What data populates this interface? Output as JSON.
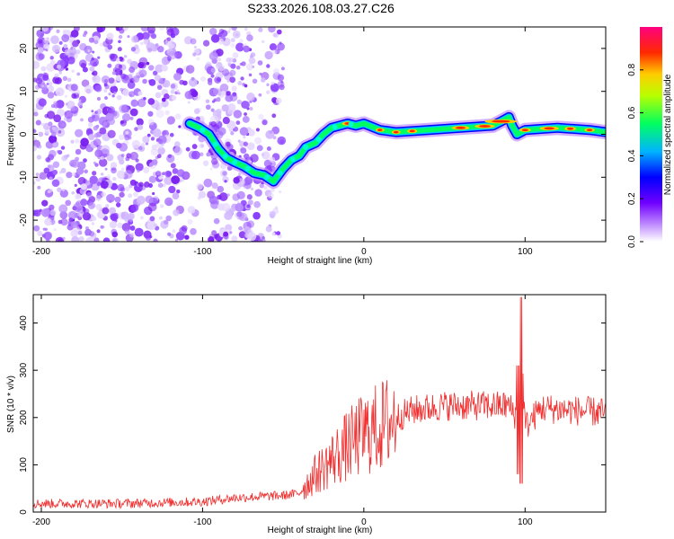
{
  "figure": {
    "title": "S233.2026.108.03.27.C26"
  },
  "chart_data": [
    {
      "type": "heatmap",
      "name": "spectrogram",
      "xlabel": "Height of straight line (km)",
      "ylabel": "Frequency (Hz)",
      "xlim": [
        -205,
        150
      ],
      "ylim": [
        -25,
        25
      ],
      "xticks": [
        -200,
        -100,
        0,
        100
      ],
      "yticks": [
        -20,
        -10,
        0,
        10,
        20
      ],
      "ridge": {
        "x": [
          -108,
          -102,
          -96,
          -90,
          -85,
          -80,
          -74,
          -68,
          -62,
          -56,
          -50,
          -45,
          -40,
          -36,
          -30,
          -25,
          -20,
          -15,
          -10,
          -5,
          0,
          10,
          20,
          40,
          60,
          80,
          85,
          90,
          92,
          95,
          100,
          120,
          140,
          150
        ],
        "y": [
          2.5,
          1.5,
          0,
          -3.5,
          -5.5,
          -6.5,
          -7.5,
          -9,
          -9.5,
          -11,
          -8,
          -6,
          -5,
          -3,
          -2,
          0,
          1.5,
          2,
          2.5,
          2,
          2.5,
          1,
          0.5,
          1,
          1.5,
          2,
          3,
          4,
          2,
          0,
          1,
          1.5,
          1,
          0.5
        ]
      },
      "colorbar": {
        "label": "Normalized spectral amplitude",
        "range": [
          0,
          1
        ],
        "ticks": [
          "0.0",
          "0.2",
          "0.4",
          "0.6",
          "0.8"
        ],
        "colors": [
          "#ffffff",
          "#9b30ff",
          "#0000ff",
          "#00c8ff",
          "#00ff44",
          "#ffff00",
          "#ff8800",
          "#ff0000",
          "#ff00aa"
        ]
      }
    },
    {
      "type": "line",
      "name": "snr",
      "xlabel": "Height of straight line (km)",
      "ylabel": "SNR (10 * v/v)",
      "xlim": [
        -205,
        150
      ],
      "ylim": [
        0,
        460
      ],
      "xticks": [
        -200,
        -100,
        0,
        100
      ],
      "yticks": [
        0,
        100,
        200,
        300,
        400
      ],
      "series": [
        {
          "name": "SNR",
          "color": "#f03030",
          "envelope": {
            "x": [
              -205,
              -150,
              -100,
              -80,
              -50,
              -40,
              -30,
              -20,
              -10,
              0,
              10,
              20,
              30,
              50,
              80,
              90,
              95,
              97,
              98,
              100,
              110,
              150
            ],
            "y": [
              18,
              18,
              22,
              30,
              35,
              40,
              80,
              110,
              140,
              165,
              180,
              200,
              215,
              225,
              225,
              225,
              200,
              100,
              330,
              180,
              220,
              210
            ]
          }
        }
      ]
    }
  ]
}
